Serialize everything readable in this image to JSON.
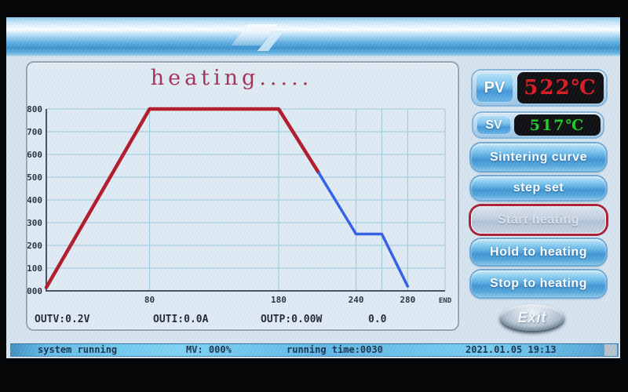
{
  "readouts": {
    "pv_label": "PV",
    "pv_value": "522℃",
    "pv_color": "#d6141c",
    "sv_label": "SV",
    "sv_value": "517℃",
    "sv_color": "#16cb1e"
  },
  "side_buttons": [
    {
      "label": "Sintering curve",
      "state": "normal"
    },
    {
      "label": "step set",
      "state": "normal"
    },
    {
      "label": "Start heating",
      "state": "selected"
    },
    {
      "label": "Hold to heating",
      "state": "normal"
    },
    {
      "label": "Stop to heating",
      "state": "normal"
    }
  ],
  "exit_button": {
    "label": "Exit"
  },
  "outputs": {
    "outv": "OUTV:0.2V",
    "outi": "OUTI:0.0A",
    "outp": "OUTP:0.00W",
    "extra": "0.0"
  },
  "status_bar": {
    "system_status": "system running",
    "mv": "MV: 000%",
    "running_time": "running time:0030",
    "datetime": "2021.01.05 19:13"
  },
  "chart_data": {
    "type": "line",
    "title": "heating.....",
    "title_color": "#a32a4e",
    "xlabel": "",
    "ylabel": "",
    "xlim": [
      0,
      309
    ],
    "ylim": [
      0,
      800
    ],
    "grid": true,
    "legend": "none",
    "grid_color": "#98c9dc",
    "axis_color": "#3f4d58",
    "yticks": [
      {
        "value": 0,
        "label": "000"
      },
      {
        "value": 100,
        "label": "100"
      },
      {
        "value": 200,
        "label": "200"
      },
      {
        "value": 300,
        "label": "300"
      },
      {
        "value": 400,
        "label": "400"
      },
      {
        "value": 500,
        "label": "500"
      },
      {
        "value": 600,
        "label": "600"
      },
      {
        "value": 700,
        "label": "700"
      },
      {
        "value": 800,
        "label": "800"
      }
    ],
    "xticks": [
      {
        "value": 80,
        "label": "80"
      },
      {
        "value": 180,
        "label": "180"
      },
      {
        "value": 240,
        "label": "240"
      },
      {
        "value": 260,
        "label": ""
      },
      {
        "value": 280,
        "label": "280"
      },
      {
        "value": 309,
        "label": "END"
      }
    ],
    "series": [
      {
        "name": "profile completed (red)",
        "color": "#b11222",
        "width": 4.5,
        "points": [
          [
            0,
            15
          ],
          [
            80,
            800
          ],
          [
            180,
            800
          ],
          [
            211,
            520
          ]
        ]
      },
      {
        "name": "profile remaining (blue)",
        "color": "#2e5be8",
        "width": 3.5,
        "points": [
          [
            211,
            520
          ],
          [
            240,
            250
          ],
          [
            260,
            250
          ],
          [
            280,
            20
          ]
        ]
      }
    ]
  }
}
